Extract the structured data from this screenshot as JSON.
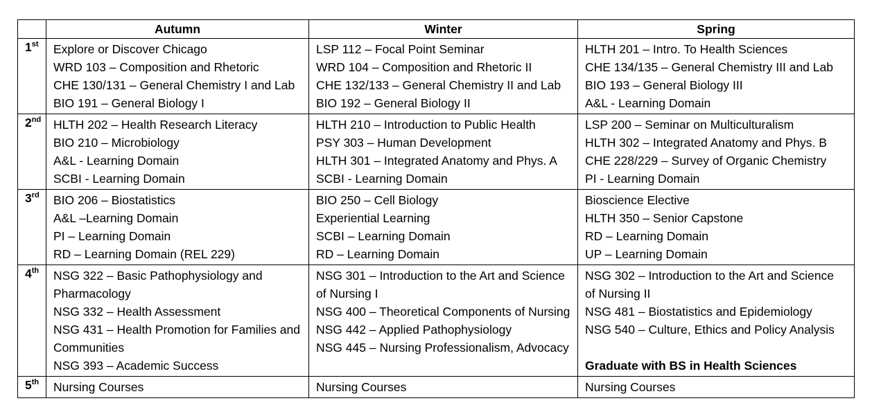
{
  "table": {
    "header": {
      "year": "",
      "autumn": "Autumn",
      "winter": "Winter",
      "spring": "Spring"
    },
    "rows": [
      {
        "year_num": "1",
        "year_suffix": "st",
        "autumn": [
          "Explore or Discover Chicago",
          "WRD 103 – Composition and Rhetoric",
          "CHE 130/131 – General Chemistry I and Lab",
          "BIO 191 – General Biology I"
        ],
        "winter": [
          "LSP 112 – Focal Point Seminar",
          "WRD 104 – Composition and Rhetoric II",
          "CHE 132/133 – General Chemistry II and Lab",
          "BIO 192 – General Biology II"
        ],
        "spring": [
          "HLTH 201 – Intro. To Health Sciences",
          "CHE 134/135 – General Chemistry III and Lab",
          "BIO 193 – General Biology III",
          "A&L - Learning Domain"
        ]
      },
      {
        "year_num": "2",
        "year_suffix": "nd",
        "autumn": [
          "HLTH 202 – Health Research Literacy",
          "BIO 210 – Microbiology",
          "A&L - Learning Domain",
          "SCBI - Learning Domain"
        ],
        "winter": [
          "HLTH 210 – Introduction to Public Health",
          "PSY 303 – Human Development",
          "HLTH 301 – Integrated Anatomy and Phys. A",
          "SCBI - Learning Domain"
        ],
        "spring": [
          "LSP 200 – Seminar on Multiculturalism",
          "HLTH 302 – Integrated Anatomy and Phys. B",
          "CHE 228/229 – Survey of Organic Chemistry",
          "PI - Learning Domain"
        ]
      },
      {
        "year_num": "3",
        "year_suffix": "rd",
        "autumn": [
          "BIO 206 – Biostatistics",
          "A&L –Learning Domain",
          "PI – Learning Domain",
          "RD – Learning Domain (REL 229)"
        ],
        "winter": [
          "BIO 250 – Cell Biology",
          "Experiential Learning",
          "SCBI – Learning Domain",
          "RD – Learning Domain"
        ],
        "spring": [
          "Bioscience Elective",
          "HLTH 350 – Senior Capstone",
          "RD – Learning Domain",
          "UP – Learning Domain"
        ]
      },
      {
        "year_num": "4",
        "year_suffix": "th",
        "autumn": [
          "NSG 322 – Basic Pathophysiology and Pharmacology",
          "NSG 332 – Health Assessment",
          "NSG 431 – Health Promotion for Families and Communities",
          "NSG 393 – Academic Success"
        ],
        "winter": [
          "NSG 301 – Introduction to the Art and Science of Nursing I",
          "NSG 400 – Theoretical Components of Nursing",
          "NSG 442 – Applied Pathophysiology",
          "NSG 445 – Nursing Professionalism, Advocacy"
        ],
        "spring": [
          "NSG 302 – Introduction to the Art and Science of Nursing II",
          "NSG 481 – Biostatistics and Epidemiology",
          "NSG 540 – Culture, Ethics and Policy Analysis"
        ],
        "spring_note": "Graduate with BS in Health Sciences"
      },
      {
        "year_num": "5",
        "year_suffix": "th",
        "autumn": [
          "Nursing Courses"
        ],
        "winter": [
          "Nursing Courses"
        ],
        "spring": [
          "Nursing Courses"
        ]
      }
    ]
  }
}
